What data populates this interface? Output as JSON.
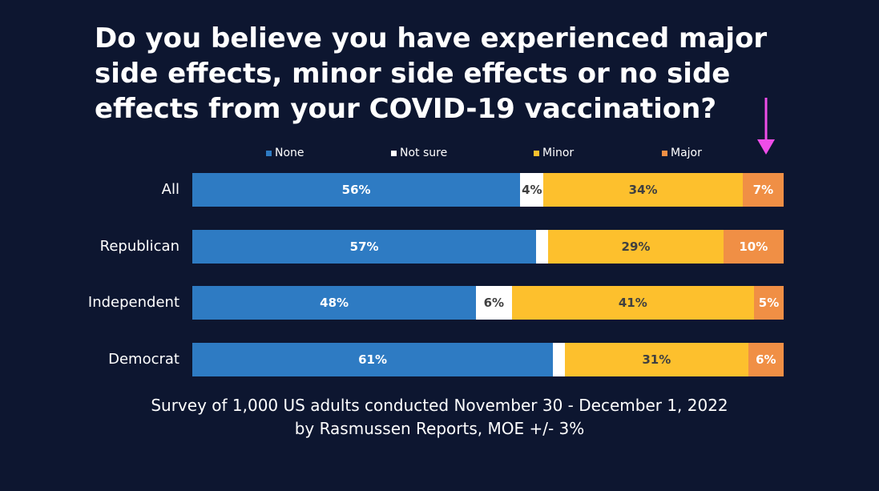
{
  "chart_data": {
    "type": "bar",
    "orientation": "horizontal",
    "stacked": true,
    "normalized": true,
    "title": "Do you believe you have experienced major side effects, minor side effects or no side effects from your COVID-19 vaccination?",
    "categories": [
      "All",
      "Republican",
      "Independent",
      "Democrat"
    ],
    "series": [
      {
        "name": "None",
        "color": "#2e7bc3",
        "label_color": "#ffffff",
        "values": [
          56,
          57,
          48,
          61
        ],
        "labels": [
          "56%",
          "57%",
          "48%",
          "61%"
        ]
      },
      {
        "name": "Not sure",
        "color": "#ffffff",
        "label_color": "#404040",
        "values": [
          4,
          2,
          6,
          2
        ],
        "labels": [
          "4%",
          "",
          "6%",
          ""
        ]
      },
      {
        "name": "Minor",
        "color": "#fdc02d",
        "label_color": "#404040",
        "values": [
          34,
          29,
          41,
          31
        ],
        "labels": [
          "34%",
          "29%",
          "41%",
          "31%"
        ]
      },
      {
        "name": "Major",
        "color": "#f08f45",
        "label_color": "#ffffff",
        "values": [
          7,
          10,
          5,
          6
        ],
        "labels": [
          "7%",
          "10%",
          "5%",
          "6%"
        ]
      }
    ],
    "legend_position": "top",
    "grid": false
  },
  "footer": {
    "line1": "Survey of 1,000 US adults conducted November 30 - December 1, 2022",
    "line2": "by Rasmussen Reports, MOE +/- 3%"
  },
  "annotation": {
    "icon": "down-arrow-icon",
    "color": "#ee4de8"
  }
}
